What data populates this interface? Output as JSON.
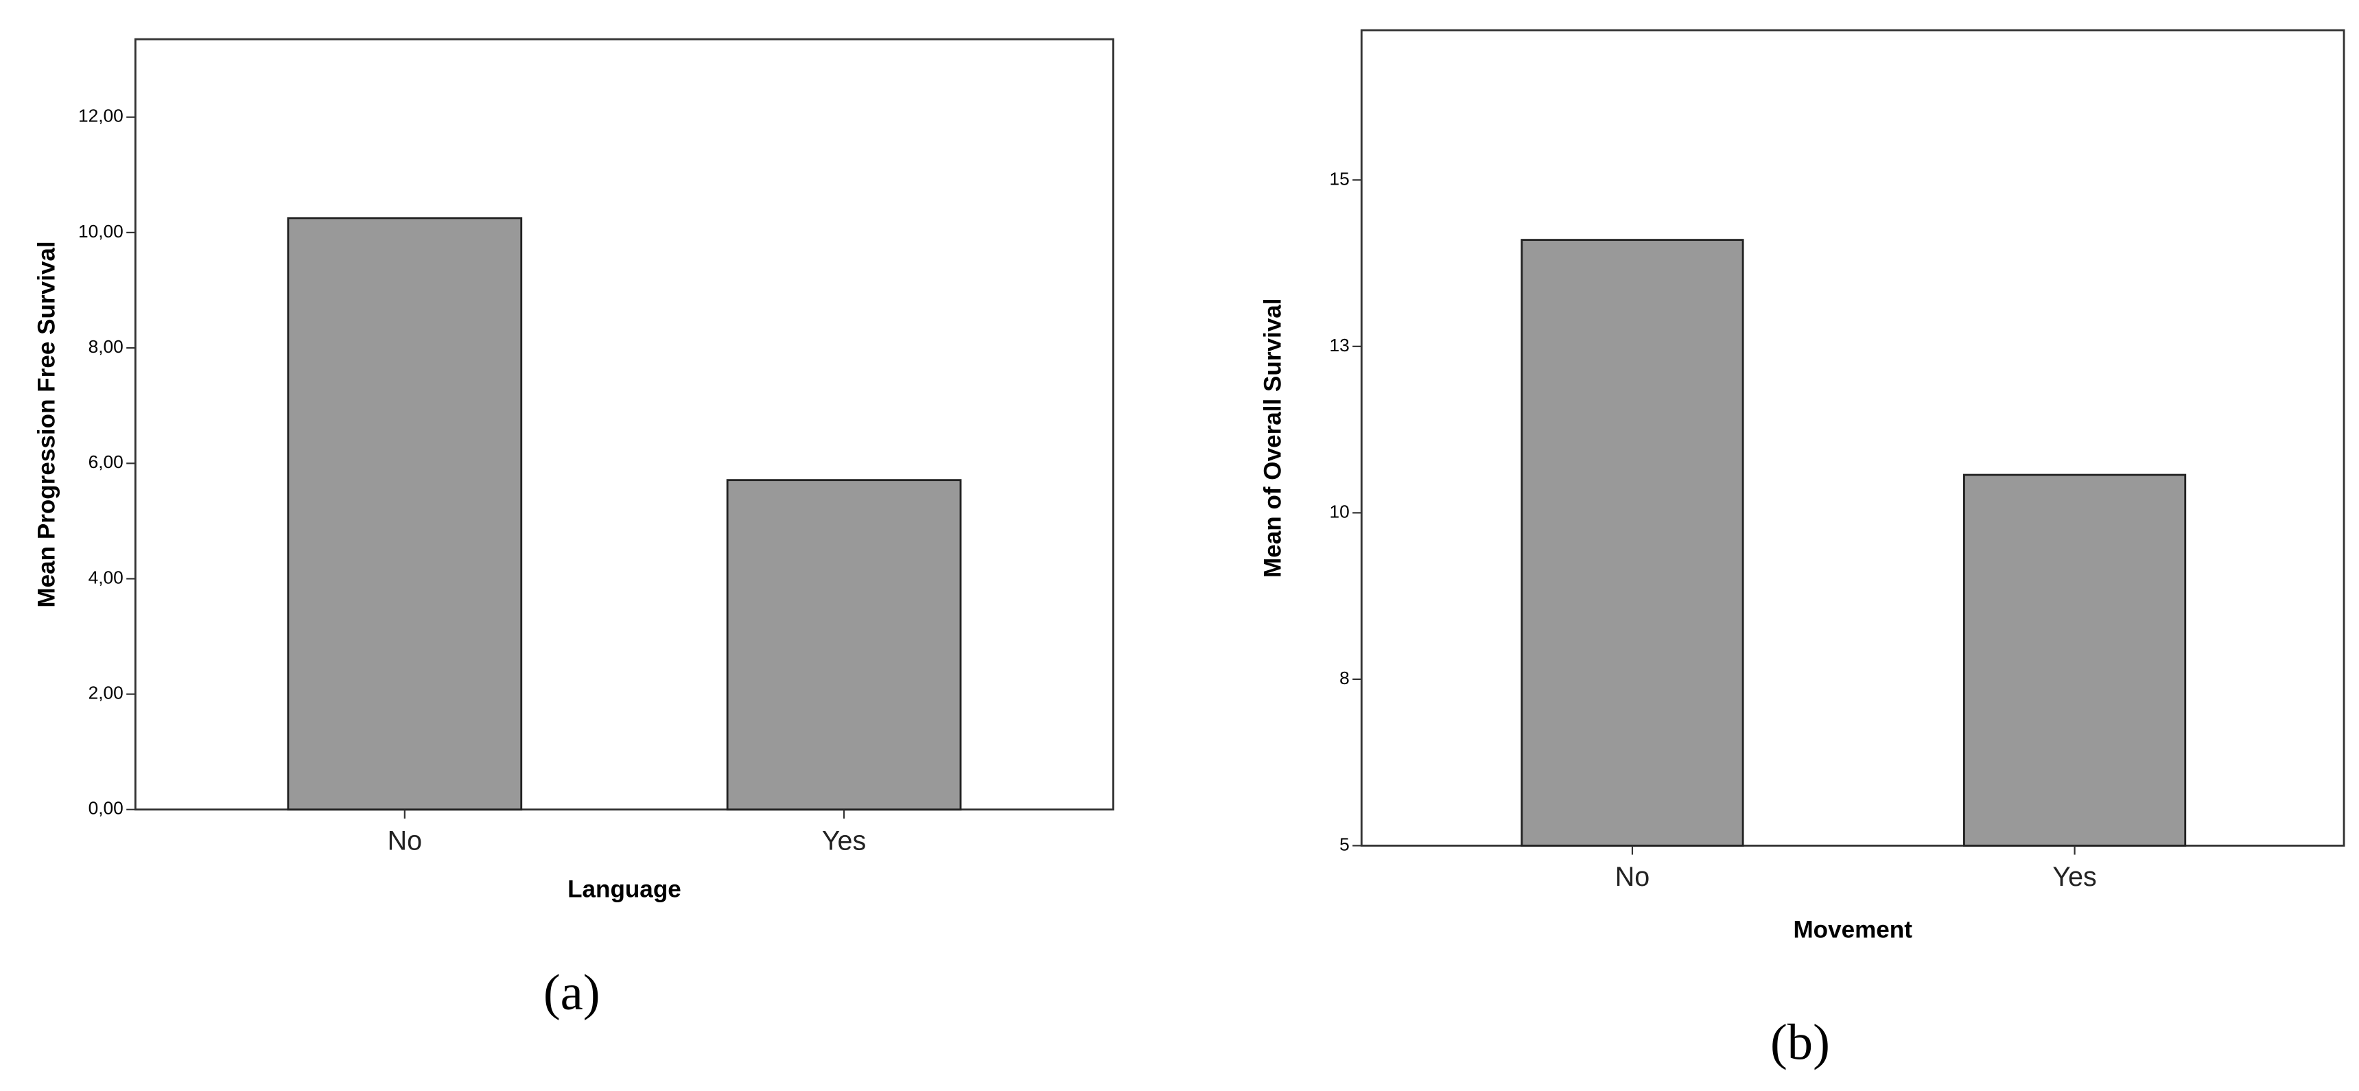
{
  "chart_data": [
    {
      "type": "bar",
      "caption": "(a)",
      "x_label": "Language",
      "y_label": "Mean Progression Free Survival",
      "categories": [
        "No",
        "Yes"
      ],
      "values": [
        10.25,
        5.71
      ],
      "color": "#999999",
      "ylim": [
        0,
        13.35
      ],
      "yticks": [
        {
          "value": 0,
          "label": "0,00"
        },
        {
          "value": 2,
          "label": "2,00"
        },
        {
          "value": 4,
          "label": "4,00"
        },
        {
          "value": 6,
          "label": "6,00"
        },
        {
          "value": 8,
          "label": "8,00"
        },
        {
          "value": 10,
          "label": "10,00"
        },
        {
          "value": 12,
          "label": "12,00"
        }
      ],
      "grid": false
    },
    {
      "type": "bar",
      "caption": "(b)",
      "x_label": "Movement",
      "y_label": "Mean of Overall Survival",
      "categories": [
        "No",
        "Yes"
      ],
      "values": [
        14.1,
        10.57
      ],
      "color": "#999999",
      "ylim": [
        5,
        17.25
      ],
      "yticks": [
        5,
        {
          "value": 7.5,
          "label": "8"
        },
        10,
        {
          "value": 12.5,
          "label": "13"
        },
        15
      ],
      "grid": false
    }
  ]
}
